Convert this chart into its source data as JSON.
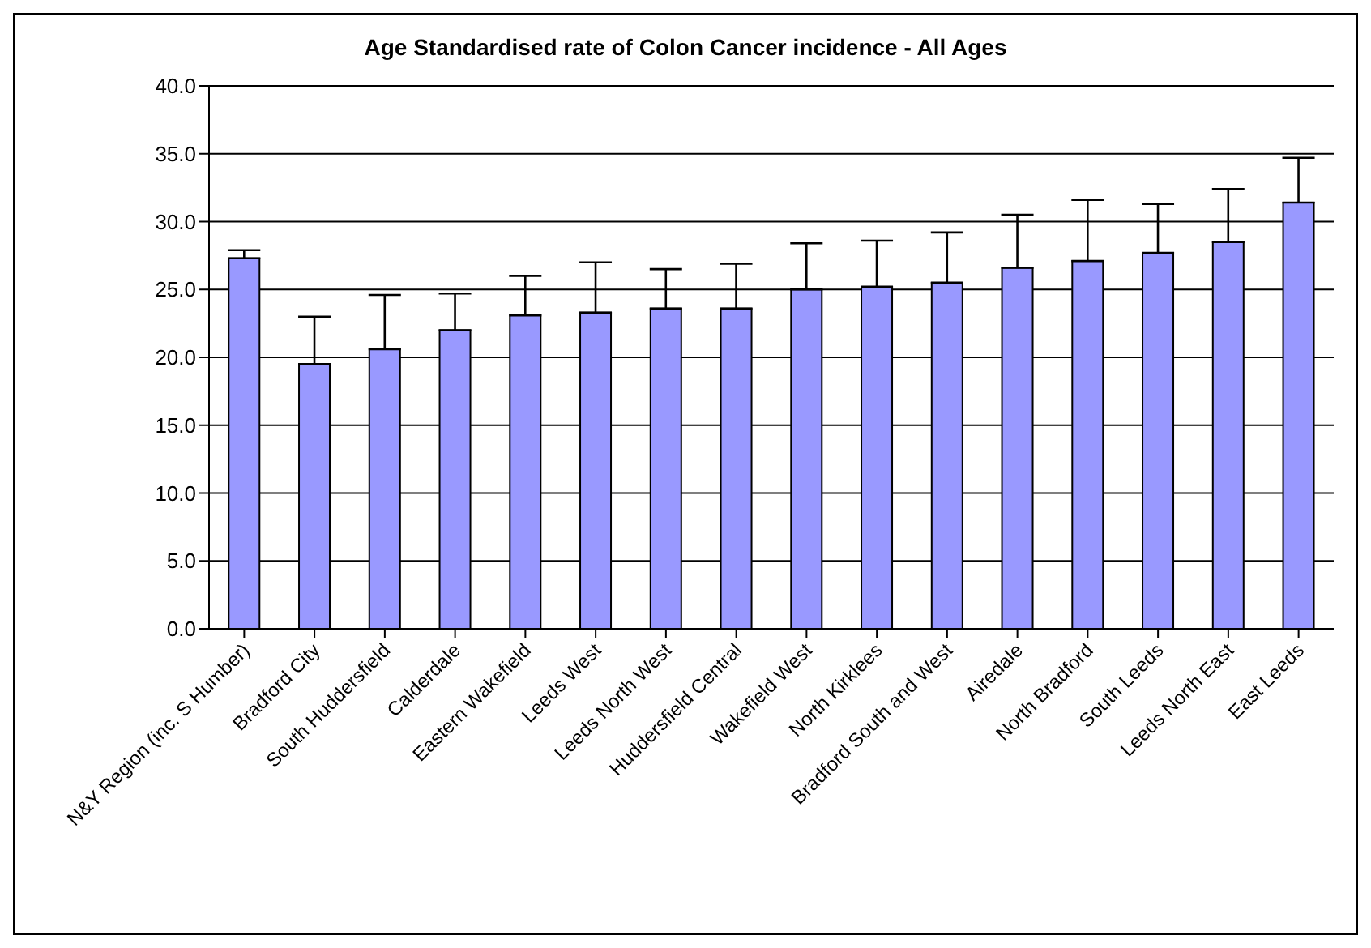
{
  "chart_data": {
    "type": "bar",
    "title": "Age Standardised rate of Colon Cancer incidence - All Ages",
    "categories": [
      "N&Y Region (inc. S Humber)",
      "Bradford City",
      "South Huddersfield",
      "Calderdale",
      "Eastern Wakefield",
      "Leeds West",
      "Leeds North West",
      "Huddersfield Central",
      "Wakefield West",
      "North Kirklees",
      "Bradford South and West",
      "Airedale",
      "North Bradford",
      "South Leeds",
      "Leeds North East",
      "East Leeds"
    ],
    "values": [
      27.3,
      19.5,
      20.6,
      22.0,
      23.1,
      23.3,
      23.6,
      23.6,
      25.0,
      25.2,
      25.5,
      26.6,
      27.1,
      27.7,
      28.5,
      31.4
    ],
    "errors": [
      [
        27.3,
        27.9
      ],
      [
        19.5,
        23.0
      ],
      [
        20.6,
        24.6
      ],
      [
        22.0,
        24.7
      ],
      [
        23.1,
        26.0
      ],
      [
        23.3,
        27.0
      ],
      [
        23.6,
        26.5
      ],
      [
        23.6,
        26.9
      ],
      [
        25.0,
        28.4
      ],
      [
        25.2,
        28.6
      ],
      [
        25.5,
        29.2
      ],
      [
        26.6,
        30.5
      ],
      [
        27.1,
        31.6
      ],
      [
        27.7,
        31.3
      ],
      [
        28.5,
        32.4
      ],
      [
        31.4,
        34.7
      ]
    ],
    "color": "#9999ff",
    "ylim": [
      0,
      40
    ],
    "yticks": [
      {
        "value": 0,
        "label": "0.0"
      },
      {
        "value": 5,
        "label": "5.0"
      },
      {
        "value": 10,
        "label": "10.0"
      },
      {
        "value": 15,
        "label": "15.0"
      },
      {
        "value": 20,
        "label": "20.0"
      },
      {
        "value": 25,
        "label": "25.0"
      },
      {
        "value": 30,
        "label": "30.0"
      },
      {
        "value": 35,
        "label": "35.0"
      },
      {
        "value": 40,
        "label": "40.0"
      }
    ],
    "grid": "y",
    "legend": false
  }
}
